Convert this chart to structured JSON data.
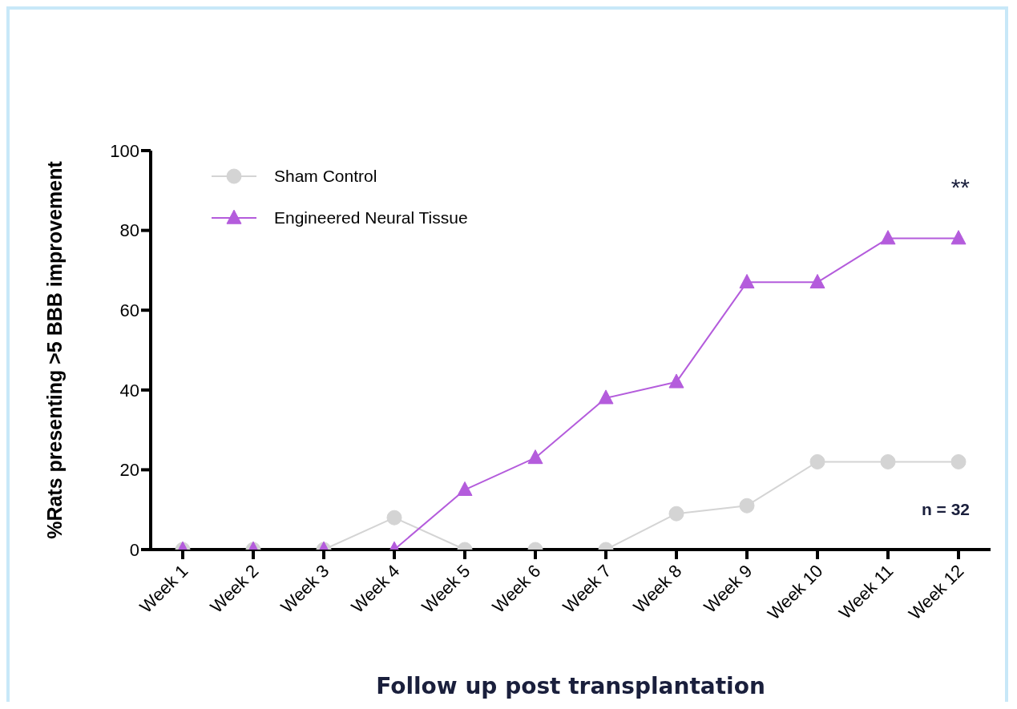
{
  "chart_data": {
    "type": "line",
    "ylabel": "%Rats presenting >5 BBB improvement",
    "xlabel": "Follow up post transplantation",
    "categories": [
      "Week 1",
      "Week 2",
      "Week 3",
      "Week 4",
      "Week 5",
      "Week 6",
      "Week 7",
      "Week 8",
      "Week 9",
      "Week 10",
      "Week 11",
      "Week 12"
    ],
    "series": [
      {
        "name": "Sham Control",
        "color": "#d4d4d4",
        "marker": "circle",
        "values": [
          0,
          0,
          0,
          8,
          0,
          0,
          0,
          9,
          11,
          22,
          22,
          22
        ]
      },
      {
        "name": "Engineered Neural Tissue",
        "color": "#b45cdc",
        "marker": "triangle",
        "values": [
          0,
          0,
          0,
          0,
          15,
          23,
          38,
          42,
          67,
          67,
          78,
          78
        ]
      }
    ],
    "ylim": [
      0,
      100
    ],
    "yticks": [
      0,
      20,
      40,
      60,
      80,
      100
    ],
    "grid": false,
    "legend": "top left",
    "line_style": "solid",
    "annotations": [
      "**",
      "n = 32"
    ]
  }
}
